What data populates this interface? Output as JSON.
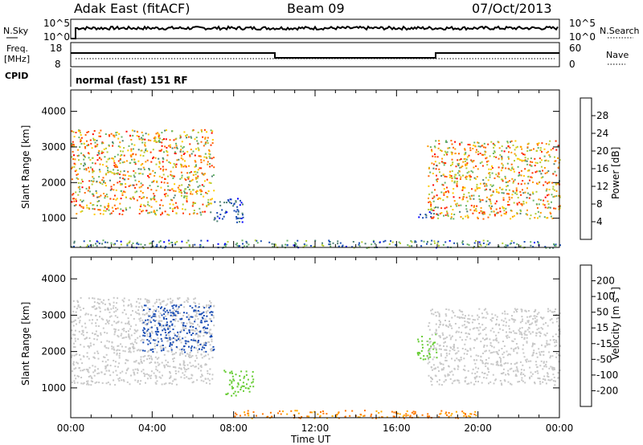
{
  "header": {
    "radar": "Adak East (fitACF)",
    "beam": "Beam 09",
    "date": "07/Oct/2013"
  },
  "panels": {
    "sky": {
      "left_label": "N.Sky",
      "right_label": "N.Search",
      "left_ticks": [
        "10^5",
        "10^0"
      ],
      "right_ticks": [
        "10^5",
        "10^0"
      ]
    },
    "freq": {
      "left_label_1": "Freq.",
      "left_label_2": "[MHz]",
      "right_label": "Nave",
      "left_ticks": [
        "18",
        "8"
      ],
      "right_ticks": [
        "60",
        "0"
      ]
    },
    "cpid": {
      "label": "CPID",
      "text": "normal (fast) 151 RF"
    }
  },
  "colorbars": {
    "power": {
      "label": "Power [dB]",
      "ticks": [
        "28",
        "24",
        "20",
        "16",
        "12",
        "8",
        "4"
      ],
      "colors": [
        "#0000ff",
        "#1a4db3",
        "#4d8073",
        "#66b366",
        "#b3cc33",
        "#ffcc00",
        "#ff9900",
        "#ff6600",
        "#ff3300",
        "#ff0000"
      ]
    },
    "velocity": {
      "label_main": "Velocity [m s",
      "label_sup": "-1",
      "label_end": "]",
      "ticks": [
        "200",
        "100",
        "50",
        "15",
        "-15",
        "-50",
        "-100",
        "-200"
      ],
      "colors": [
        "#0000ff",
        "#1a4db3",
        "#2e8b57",
        "#66cc33",
        "#c8c8c8",
        "#ffaa00",
        "#ff7700",
        "#ff3300",
        "#ff0000"
      ]
    }
  },
  "chart_data": [
    {
      "type": "heatmap",
      "title": "",
      "ylabel": "Slant Range [km]",
      "xlabel": "",
      "x_ticks": [
        "00:00",
        "04:00",
        "08:00",
        "12:00",
        "16:00",
        "20:00",
        "00:00"
      ],
      "y_ticks": [
        "1000",
        "2000",
        "3000",
        "4000"
      ],
      "ylim": [
        180,
        4600
      ],
      "xlim_hours": [
        0,
        24
      ],
      "parameter": "Power [dB]",
      "features": [
        {
          "t": [
            0.0,
            7.0
          ],
          "range_km": [
            1100,
            3500
          ],
          "value_db": [
            10,
            30
          ],
          "note_color": "red-orange"
        },
        {
          "t": [
            7.0,
            8.5
          ],
          "range_km": [
            900,
            1600
          ],
          "value_db": [
            4,
            10
          ]
        },
        {
          "t": [
            17.0,
            18.0
          ],
          "range_km": [
            1000,
            1200
          ],
          "value_db": [
            4,
            10
          ]
        },
        {
          "t": [
            17.5,
            24.0
          ],
          "range_km": [
            1000,
            3200
          ],
          "value_db": [
            10,
            30
          ]
        },
        {
          "t": [
            0.0,
            24.0
          ],
          "range_km": [
            180,
            400
          ],
          "value_db": [
            4,
            16
          ]
        }
      ]
    },
    {
      "type": "heatmap",
      "title": "",
      "ylabel": "Slant Range [km]",
      "xlabel": "Time UT",
      "x_ticks": [
        "00:00",
        "04:00",
        "08:00",
        "12:00",
        "16:00",
        "20:00",
        "00:00"
      ],
      "y_ticks": [
        "1000",
        "2000",
        "3000",
        "4000"
      ],
      "ylim": [
        180,
        4600
      ],
      "xlim_hours": [
        0,
        24
      ],
      "parameter": "Velocity [m s-1]",
      "features": [
        {
          "t": [
            0.0,
            7.0
          ],
          "range_km": [
            1100,
            3500
          ],
          "value_ms": [
            -15,
            15
          ]
        },
        {
          "t": [
            3.5,
            7.0
          ],
          "range_km": [
            2000,
            3300
          ],
          "value_ms": [
            100,
            200
          ]
        },
        {
          "t": [
            7.5,
            9.0
          ],
          "range_km": [
            800,
            1500
          ],
          "value_ms": [
            15,
            50
          ]
        },
        {
          "t": [
            17.0,
            18.0
          ],
          "range_km": [
            1800,
            2500
          ],
          "value_ms": [
            15,
            50
          ]
        },
        {
          "t": [
            17.5,
            24.0
          ],
          "range_km": [
            1100,
            3200
          ],
          "value_ms": [
            -15,
            15
          ]
        },
        {
          "t": [
            8.0,
            20.0
          ],
          "range_km": [
            180,
            400
          ],
          "value_ms": [
            -100,
            -15
          ]
        }
      ]
    }
  ]
}
